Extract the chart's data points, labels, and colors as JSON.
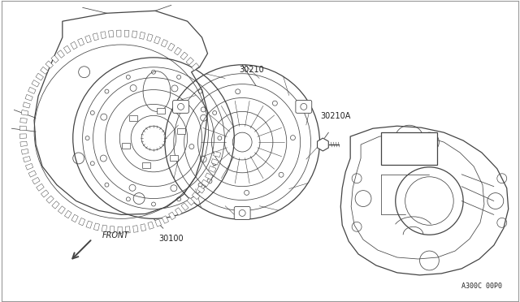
{
  "bg_color": "#ffffff",
  "line_color": "#444444",
  "label_color": "#222222",
  "border_color": "#999999",
  "lw_main": 0.9,
  "lw_thin": 0.55,
  "lw_thick": 1.1,
  "diagram_code": "A300C 00P0",
  "front_text": "FRONT",
  "label_30100": "30100",
  "label_30210": "30210",
  "label_30210A": "30210A",
  "font_size_label": 7.0,
  "font_size_code": 6.0
}
